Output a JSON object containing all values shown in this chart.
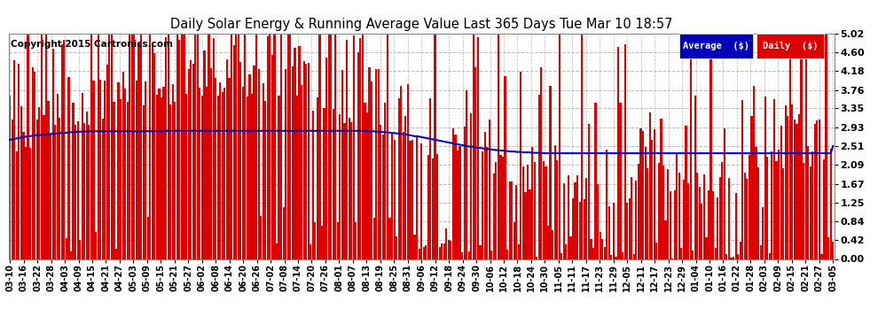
{
  "title": "Daily Solar Energy & Running Average Value Last 365 Days Tue Mar 10 18:57",
  "copyright_text": "Copyright 2015 Cartronics.com",
  "bar_color": "#dd0000",
  "avg_line_color": "#0000bb",
  "background_color": "#ffffff",
  "plot_bg_color": "#ffffff",
  "grid_color": "#bbbbbb",
  "ylim": [
    0.0,
    5.02
  ],
  "yticks": [
    0.0,
    0.42,
    0.84,
    1.25,
    1.67,
    2.09,
    2.51,
    2.93,
    3.35,
    3.76,
    4.18,
    4.6,
    5.02
  ],
  "legend_avg_color": "#0000bb",
  "legend_daily_color": "#dd0000",
  "legend_avg_label": "Average  ($)",
  "legend_daily_label": "Daily  ($)",
  "n_days": 365,
  "figsize": [
    9.9,
    3.75
  ],
  "dpi": 100,
  "title_fontsize": 11,
  "xtick_dates": [
    "03-10",
    "03-16",
    "03-22",
    "03-28",
    "04-03",
    "04-09",
    "04-15",
    "04-21",
    "04-27",
    "05-03",
    "05-09",
    "05-15",
    "05-21",
    "05-27",
    "06-02",
    "06-08",
    "06-14",
    "06-20",
    "06-26",
    "07-02",
    "07-08",
    "07-14",
    "07-20",
    "07-26",
    "08-01",
    "08-07",
    "08-13",
    "08-19",
    "08-25",
    "08-31",
    "09-06",
    "09-12",
    "09-18",
    "09-24",
    "09-30",
    "10-06",
    "10-12",
    "10-18",
    "10-24",
    "10-30",
    "11-05",
    "11-11",
    "11-17",
    "11-23",
    "11-29",
    "12-05",
    "12-11",
    "12-17",
    "12-23",
    "12-29",
    "01-04",
    "01-10",
    "01-16",
    "01-22",
    "01-28",
    "02-03",
    "02-09",
    "02-15",
    "02-21",
    "02-27",
    "03-05"
  ],
  "avg_line_values": [
    2.65,
    2.66,
    2.67,
    2.68,
    2.69,
    2.7,
    2.71,
    2.72,
    2.73,
    2.73,
    2.74,
    2.75,
    2.75,
    2.75,
    2.76,
    2.76,
    2.77,
    2.77,
    2.78,
    2.78,
    2.79,
    2.79,
    2.8,
    2.8,
    2.8,
    2.81,
    2.81,
    2.82,
    2.82,
    2.82,
    2.83,
    2.83,
    2.83,
    2.83,
    2.84,
    2.84,
    2.84,
    2.84,
    2.84,
    2.84,
    2.84,
    2.84,
    2.84,
    2.84,
    2.84,
    2.84,
    2.84,
    2.84,
    2.84,
    2.84,
    2.84,
    2.84,
    2.84,
    2.84,
    2.84,
    2.84,
    2.84,
    2.84,
    2.84,
    2.84,
    2.84,
    2.84,
    2.84,
    2.84,
    2.84,
    2.84,
    2.84,
    2.84,
    2.85,
    2.85,
    2.85,
    2.85,
    2.85,
    2.85,
    2.85,
    2.85,
    2.85,
    2.85,
    2.85,
    2.85,
    2.85,
    2.85,
    2.85,
    2.85,
    2.85,
    2.85,
    2.85,
    2.85,
    2.85,
    2.85,
    2.85,
    2.85,
    2.85,
    2.85,
    2.85,
    2.85,
    2.85,
    2.85,
    2.85,
    2.85,
    2.85,
    2.85,
    2.85,
    2.85,
    2.85,
    2.85,
    2.85,
    2.85,
    2.85,
    2.85,
    2.85,
    2.85,
    2.85,
    2.85,
    2.85,
    2.85,
    2.85,
    2.85,
    2.85,
    2.85,
    2.85,
    2.85,
    2.85,
    2.85,
    2.85,
    2.85,
    2.85,
    2.85,
    2.85,
    2.85,
    2.85,
    2.85,
    2.85,
    2.85,
    2.85,
    2.85,
    2.85,
    2.85,
    2.85,
    2.85,
    2.85,
    2.85,
    2.85,
    2.85,
    2.85,
    2.85,
    2.85,
    2.85,
    2.85,
    2.85,
    2.85,
    2.85,
    2.85,
    2.85,
    2.85,
    2.85,
    2.85,
    2.85,
    2.85,
    2.84,
    2.84,
    2.84,
    2.83,
    2.83,
    2.83,
    2.82,
    2.82,
    2.81,
    2.81,
    2.8,
    2.8,
    2.79,
    2.79,
    2.78,
    2.77,
    2.77,
    2.76,
    2.75,
    2.74,
    2.73,
    2.73,
    2.72,
    2.71,
    2.7,
    2.69,
    2.68,
    2.67,
    2.66,
    2.65,
    2.64,
    2.63,
    2.62,
    2.61,
    2.6,
    2.59,
    2.58,
    2.57,
    2.56,
    2.55,
    2.54,
    2.53,
    2.52,
    2.51,
    2.5,
    2.5,
    2.49,
    2.48,
    2.47,
    2.47,
    2.46,
    2.45,
    2.45,
    2.44,
    2.43,
    2.43,
    2.42,
    2.42,
    2.41,
    2.41,
    2.4,
    2.4,
    2.39,
    2.39,
    2.39,
    2.38,
    2.38,
    2.38,
    2.37,
    2.37,
    2.37,
    2.37,
    2.36,
    2.36,
    2.36,
    2.36,
    2.36,
    2.35,
    2.35,
    2.35,
    2.35,
    2.35,
    2.35,
    2.35,
    2.35,
    2.35,
    2.35,
    2.35,
    2.35,
    2.35,
    2.35,
    2.35,
    2.35,
    2.35,
    2.35,
    2.35,
    2.35,
    2.35,
    2.35,
    2.35,
    2.35,
    2.35,
    2.35,
    2.35,
    2.35,
    2.35,
    2.35,
    2.35,
    2.35,
    2.35,
    2.35,
    2.35,
    2.35,
    2.35,
    2.35,
    2.35,
    2.35,
    2.35,
    2.35,
    2.35,
    2.35,
    2.35,
    2.35,
    2.35,
    2.35,
    2.35,
    2.35,
    2.35,
    2.35,
    2.35,
    2.35,
    2.35,
    2.35,
    2.35,
    2.35,
    2.35,
    2.35,
    2.35,
    2.35,
    2.35,
    2.35,
    2.35,
    2.35,
    2.35,
    2.35,
    2.35,
    2.35,
    2.35,
    2.35,
    2.35,
    2.35,
    2.35,
    2.35,
    2.35,
    2.35,
    2.35,
    2.35,
    2.35,
    2.35,
    2.35,
    2.35,
    2.35,
    2.35,
    2.35,
    2.35,
    2.35,
    2.35,
    2.35,
    2.35,
    2.35,
    2.35,
    2.35,
    2.35,
    2.35,
    2.35,
    2.35,
    2.35,
    2.35,
    2.35,
    2.35,
    2.35,
    2.35,
    2.35,
    2.35,
    2.35,
    2.35,
    2.35,
    2.35,
    2.35,
    2.35,
    2.35,
    2.35,
    2.35,
    2.35,
    2.35,
    2.35,
    2.35,
    2.35,
    2.35,
    2.35,
    2.35,
    2.35,
    2.35,
    2.35,
    2.35,
    2.51
  ]
}
